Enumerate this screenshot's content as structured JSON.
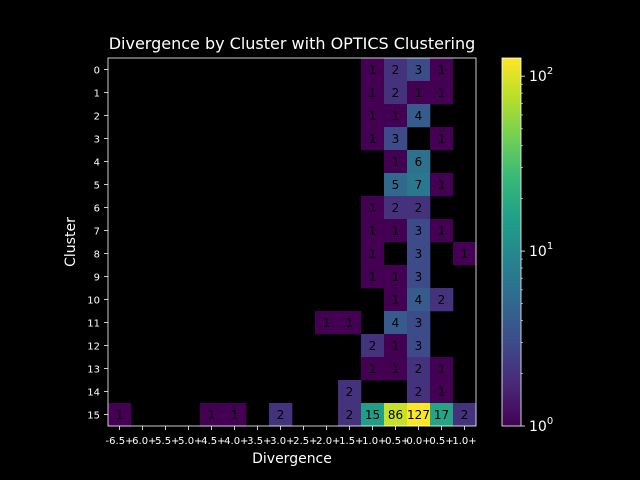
{
  "chart_data": {
    "type": "heatmap",
    "title": "Divergence by Cluster with OPTICS Clustering",
    "xlabel": "Divergence",
    "ylabel": "Cluster",
    "x_categories": [
      "-6.5+",
      "-6.0+",
      "-5.5+",
      "-5.0+",
      "-4.5+",
      "-4.0+",
      "-3.5+",
      "-3.0+",
      "-2.5+",
      "-2.0+",
      "-1.5+",
      "-1.0+",
      "-0.5+",
      "0.0+",
      "0.5+",
      "1.0+"
    ],
    "y_categories": [
      "0",
      "1",
      "2",
      "3",
      "4",
      "5",
      "6",
      "7",
      "8",
      "9",
      "10",
      "11",
      "12",
      "13",
      "14",
      "15"
    ],
    "cells": [
      {
        "y": "0",
        "x": "-1.0+",
        "v": 1
      },
      {
        "y": "0",
        "x": "-0.5+",
        "v": 2
      },
      {
        "y": "0",
        "x": "0.0+",
        "v": 3
      },
      {
        "y": "0",
        "x": "0.5+",
        "v": 1
      },
      {
        "y": "1",
        "x": "-1.0+",
        "v": 1
      },
      {
        "y": "1",
        "x": "-0.5+",
        "v": 2
      },
      {
        "y": "1",
        "x": "0.0+",
        "v": 1
      },
      {
        "y": "1",
        "x": "0.5+",
        "v": 1
      },
      {
        "y": "2",
        "x": "-1.0+",
        "v": 1
      },
      {
        "y": "2",
        "x": "-0.5+",
        "v": 1
      },
      {
        "y": "2",
        "x": "0.0+",
        "v": 4
      },
      {
        "y": "3",
        "x": "-1.0+",
        "v": 1
      },
      {
        "y": "3",
        "x": "-0.5+",
        "v": 3
      },
      {
        "y": "3",
        "x": "0.5+",
        "v": 1
      },
      {
        "y": "4",
        "x": "-0.5+",
        "v": 1
      },
      {
        "y": "4",
        "x": "0.0+",
        "v": 6
      },
      {
        "y": "5",
        "x": "-0.5+",
        "v": 5
      },
      {
        "y": "5",
        "x": "0.0+",
        "v": 7
      },
      {
        "y": "5",
        "x": "0.5+",
        "v": 1
      },
      {
        "y": "6",
        "x": "-1.0+",
        "v": 1
      },
      {
        "y": "6",
        "x": "-0.5+",
        "v": 2
      },
      {
        "y": "6",
        "x": "0.0+",
        "v": 2
      },
      {
        "y": "7",
        "x": "-1.0+",
        "v": 1
      },
      {
        "y": "7",
        "x": "-0.5+",
        "v": 1
      },
      {
        "y": "7",
        "x": "0.0+",
        "v": 3
      },
      {
        "y": "7",
        "x": "0.5+",
        "v": 1
      },
      {
        "y": "8",
        "x": "-1.0+",
        "v": 1
      },
      {
        "y": "8",
        "x": "0.0+",
        "v": 3
      },
      {
        "y": "8",
        "x": "1.0+",
        "v": 1
      },
      {
        "y": "9",
        "x": "-1.0+",
        "v": 1
      },
      {
        "y": "9",
        "x": "-0.5+",
        "v": 1
      },
      {
        "y": "9",
        "x": "0.0+",
        "v": 3
      },
      {
        "y": "10",
        "x": "-0.5+",
        "v": 1
      },
      {
        "y": "10",
        "x": "0.0+",
        "v": 4
      },
      {
        "y": "10",
        "x": "0.5+",
        "v": 2
      },
      {
        "y": "11",
        "x": "-2.0+",
        "v": 1
      },
      {
        "y": "11",
        "x": "-1.5+",
        "v": 1
      },
      {
        "y": "11",
        "x": "-0.5+",
        "v": 4
      },
      {
        "y": "11",
        "x": "0.0+",
        "v": 3
      },
      {
        "y": "12",
        "x": "-1.0+",
        "v": 2
      },
      {
        "y": "12",
        "x": "-0.5+",
        "v": 1
      },
      {
        "y": "12",
        "x": "0.0+",
        "v": 3
      },
      {
        "y": "13",
        "x": "-1.0+",
        "v": 1
      },
      {
        "y": "13",
        "x": "-0.5+",
        "v": 1
      },
      {
        "y": "13",
        "x": "0.0+",
        "v": 2
      },
      {
        "y": "13",
        "x": "0.5+",
        "v": 1
      },
      {
        "y": "14",
        "x": "-1.5+",
        "v": 2
      },
      {
        "y": "14",
        "x": "0.0+",
        "v": 2
      },
      {
        "y": "14",
        "x": "0.5+",
        "v": 1
      },
      {
        "y": "15",
        "x": "-6.5+",
        "v": 1
      },
      {
        "y": "15",
        "x": "-4.5+",
        "v": 1
      },
      {
        "y": "15",
        "x": "-4.0+",
        "v": 1
      },
      {
        "y": "15",
        "x": "-3.0+",
        "v": 2
      },
      {
        "y": "15",
        "x": "-1.5+",
        "v": 2
      },
      {
        "y": "15",
        "x": "-1.0+",
        "v": 15
      },
      {
        "y": "15",
        "x": "-0.5+",
        "v": 86
      },
      {
        "y": "15",
        "x": "0.0+",
        "v": 127
      },
      {
        "y": "15",
        "x": "0.5+",
        "v": 17
      },
      {
        "y": "15",
        "x": "1.0+",
        "v": 2
      }
    ],
    "colorbar": {
      "scale": "log",
      "range": [
        1,
        127
      ],
      "colormap": "viridis",
      "tick_bases": [
        "10",
        "10",
        "10"
      ],
      "tick_exponents": [
        "0",
        "1",
        "2"
      ],
      "tick_values": [
        1,
        10,
        100
      ]
    },
    "colors": {
      "background": "#000000",
      "foreground": "#ffffff",
      "cell_text": "#000000"
    }
  }
}
